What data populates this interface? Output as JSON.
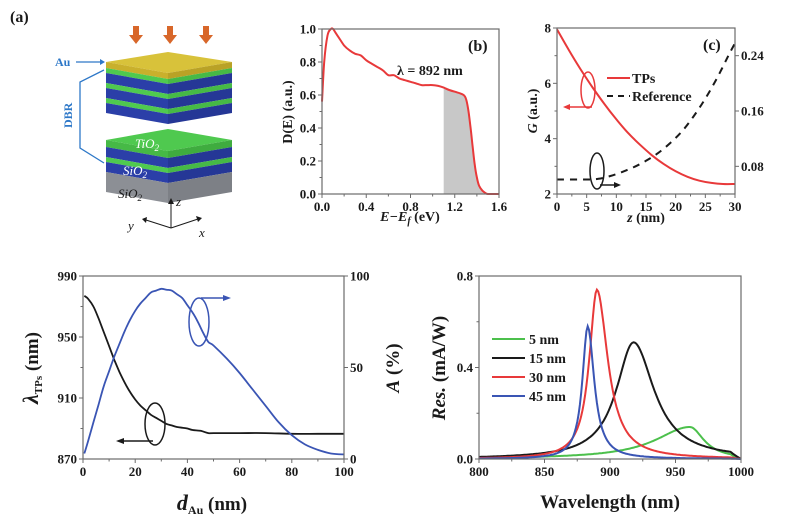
{
  "figure": {
    "schematic": {
      "panel_label": "(a)",
      "labels": {
        "au": "Au",
        "dbr": "DBR",
        "tio2": "TiO",
        "sio2_top": "SiO",
        "sio2_sub": "SiO",
        "subscript": "2"
      },
      "axes": {
        "z": "z",
        "y": "y",
        "x": "x"
      },
      "colors": {
        "gold": "#d8c23a",
        "green": "#4fc94f",
        "blue": "#2b3fa8",
        "gray": "#8c8f95",
        "arrow": "#d8672a",
        "annotation": "#2e78c8"
      },
      "incident_arrows": 3
    }
  },
  "chart_data": [
    {
      "id": "b",
      "type": "area",
      "panel_label": "(b)",
      "title": "",
      "xlabel": "E−E_f (eV)",
      "xlabel_parts": {
        "main": "E−E",
        "sub": "f",
        "unit": " (eV)"
      },
      "ylabel": "D(E) (a.u.)",
      "xlim": [
        0.0,
        1.6
      ],
      "ylim": [
        0.0,
        1.0
      ],
      "xticks": [
        0.0,
        0.4,
        0.8,
        1.2,
        1.6
      ],
      "xtick_labels": [
        "0.0",
        "0.4",
        "0.8",
        "1.2",
        "1.6"
      ],
      "yticks": [
        0.0,
        0.2,
        0.4,
        0.6,
        0.8,
        1.0
      ],
      "ytick_labels": [
        "0.0",
        "0.2",
        "0.4",
        "0.6",
        "0.8",
        "1.0"
      ],
      "annotation": "λ = 892 nm",
      "shaded_region": {
        "x_from": 1.1,
        "x_to": 1.6,
        "color": "#c8c8c8"
      },
      "series": [
        {
          "name": "D(E)",
          "color": "#e8393a",
          "x": [
            0.0,
            0.02,
            0.05,
            0.08,
            0.1,
            0.12,
            0.15,
            0.2,
            0.25,
            0.3,
            0.35,
            0.4,
            0.45,
            0.5,
            0.55,
            0.6,
            0.65,
            0.7,
            0.75,
            0.8,
            0.85,
            0.9,
            0.95,
            1.0,
            1.05,
            1.1,
            1.15,
            1.2,
            1.25,
            1.28,
            1.3,
            1.32,
            1.34,
            1.36,
            1.38,
            1.4,
            1.42,
            1.45,
            1.48,
            1.5,
            1.55,
            1.6
          ],
          "y": [
            0.56,
            0.8,
            0.96,
            1.0,
            1.0,
            0.98,
            0.95,
            0.9,
            0.87,
            0.85,
            0.84,
            0.81,
            0.79,
            0.77,
            0.75,
            0.72,
            0.72,
            0.7,
            0.69,
            0.68,
            0.67,
            0.66,
            0.66,
            0.66,
            0.655,
            0.645,
            0.63,
            0.62,
            0.61,
            0.6,
            0.58,
            0.52,
            0.42,
            0.3,
            0.18,
            0.1,
            0.05,
            0.02,
            0.005,
            0.0,
            0.0,
            0.0
          ]
        }
      ]
    },
    {
      "id": "c",
      "type": "line",
      "panel_label": "(c)",
      "title": "",
      "xlabel": "z (nm)",
      "ylabel": "G (a.u.)",
      "ylabel_right": "",
      "xlim": [
        0,
        30
      ],
      "ylim": [
        2,
        8
      ],
      "ylim_right": [
        0.04,
        0.28
      ],
      "xticks": [
        0,
        5,
        10,
        15,
        20,
        25,
        30
      ],
      "xtick_labels": [
        "0",
        "5",
        "10",
        "15",
        "20",
        "25",
        "30"
      ],
      "yticks": [
        2,
        4,
        6,
        8
      ],
      "ytick_labels": [
        "2",
        "4",
        "6",
        "8"
      ],
      "yticks_right": [
        0.08,
        0.16,
        0.24
      ],
      "ytick_labels_right": [
        "0.08",
        "0.16",
        "0.24"
      ],
      "legend": {
        "placement": "top-center",
        "entries": [
          "TPs",
          "Reference"
        ]
      },
      "series": [
        {
          "name": "TPs",
          "axis": "left",
          "color": "#e8393a",
          "dash": "solid",
          "x": [
            0,
            2,
            4,
            6,
            8,
            10,
            12,
            14,
            16,
            18,
            20,
            22,
            24,
            26,
            28,
            30
          ],
          "y": [
            7.95,
            7.2,
            6.5,
            5.85,
            5.25,
            4.7,
            4.2,
            3.78,
            3.4,
            3.08,
            2.82,
            2.62,
            2.48,
            2.4,
            2.36,
            2.36
          ]
        },
        {
          "name": "Reference",
          "axis": "right",
          "color": "#1a1a1a",
          "dash": "dashed",
          "x": [
            0,
            5,
            7,
            9,
            11,
            13,
            15,
            17,
            19,
            21,
            23,
            25,
            27,
            29,
            30
          ],
          "y": [
            0.061,
            0.061,
            0.062,
            0.066,
            0.072,
            0.079,
            0.088,
            0.099,
            0.113,
            0.13,
            0.152,
            0.178,
            0.208,
            0.242,
            0.258
          ]
        }
      ]
    },
    {
      "id": "d",
      "type": "line",
      "panel_label": "",
      "title": "",
      "xlabel": "d_Au (nm)",
      "xlabel_parts": {
        "main": "d",
        "sub": "Au",
        "unit": " (nm)"
      },
      "ylabel": "λ_TPs (nm)",
      "ylabel_parts": {
        "main": "λ",
        "sub": "TPs",
        "unit": " (nm)"
      },
      "ylabel_right": "A (%)",
      "ylabel_right_parts": {
        "main": "A",
        "unit": " (%)"
      },
      "xlim": [
        0,
        100
      ],
      "ylim": [
        870,
        990
      ],
      "ylim_right": [
        0,
        100
      ],
      "xticks": [
        0,
        20,
        40,
        60,
        80,
        100
      ],
      "xtick_labels": [
        "0",
        "20",
        "40",
        "60",
        "80",
        "100"
      ],
      "yticks": [
        870,
        910,
        950,
        990
      ],
      "ytick_labels": [
        "870",
        "910",
        "950",
        "990"
      ],
      "yticks_right": [
        0,
        50,
        100
      ],
      "ytick_labels_right": [
        "0",
        "50",
        "100"
      ],
      "series": [
        {
          "name": "λ_TPs",
          "axis": "left",
          "color": "#1a1a1a",
          "x": [
            0.5,
            2,
            4,
            6,
            8,
            10,
            12,
            14,
            16,
            18,
            20,
            22,
            24,
            26,
            28,
            30,
            32,
            34,
            36,
            38,
            40,
            42,
            45,
            48,
            50,
            60,
            70,
            80,
            90,
            100
          ],
          "y": [
            977,
            975,
            970,
            962,
            953,
            944,
            935,
            927,
            920,
            914,
            909,
            905,
            902,
            899,
            897,
            895,
            893,
            892,
            891,
            890.5,
            890,
            889,
            888.5,
            887,
            887,
            887,
            887,
            886.5,
            886.5,
            886.5
          ]
        },
        {
          "name": "A",
          "axis": "right",
          "color": "#3a55b4",
          "x": [
            0.5,
            2,
            4,
            6,
            8,
            10,
            12,
            14,
            16,
            18,
            20,
            22,
            24,
            26,
            28,
            30,
            32,
            34,
            36,
            38,
            40,
            42,
            44,
            46,
            48,
            50,
            55,
            60,
            65,
            70,
            75,
            80,
            85,
            90,
            95,
            100
          ],
          "y": [
            3,
            10,
            20,
            30,
            40,
            48,
            56,
            63,
            70,
            76,
            81,
            85,
            88,
            91,
            92,
            93,
            92.5,
            92,
            90,
            88,
            84,
            80,
            75,
            69,
            64,
            62,
            55,
            47,
            38,
            29,
            20,
            13,
            8,
            5,
            3,
            2.5
          ]
        }
      ]
    },
    {
      "id": "e",
      "type": "line",
      "panel_label": "",
      "title": "",
      "xlabel": "Wavelength (nm)",
      "ylabel": "Res. (mA/W)",
      "ylabel_parts": {
        "main": "Res.",
        "unit": " (mA/W)"
      },
      "xlim": [
        800,
        1000
      ],
      "ylim": [
        0.0,
        0.8
      ],
      "xticks": [
        800,
        850,
        900,
        950,
        1000
      ],
      "xtick_labels": [
        "800",
        "850",
        "900",
        "950",
        "1000"
      ],
      "yticks": [
        0.0,
        0.4,
        0.8
      ],
      "ytick_labels": [
        "0.0",
        "0.4",
        "0.8"
      ],
      "legend": {
        "placement": "center-left",
        "entries": [
          "5 nm",
          "15 nm",
          "30 nm",
          "45 nm"
        ]
      },
      "series": [
        {
          "name": "5 nm",
          "color": "#4cc04c",
          "peak_x": 961,
          "peak_y": 0.14,
          "hwhm_left": 32,
          "hwhm_right": 13
        },
        {
          "name": "15 nm",
          "color": "#1a1a1a",
          "peak_x": 918,
          "peak_y": 0.51,
          "hwhm_left": 16,
          "hwhm_right": 19
        },
        {
          "name": "30 nm",
          "color": "#e8393a",
          "peak_x": 890,
          "peak_y": 0.74,
          "hwhm_left": 7,
          "hwhm_right": 10
        },
        {
          "name": "45 nm",
          "color": "#3a55b4",
          "peak_x": 883,
          "peak_y": 0.58,
          "hwhm_left": 5,
          "hwhm_right": 6
        }
      ]
    }
  ]
}
